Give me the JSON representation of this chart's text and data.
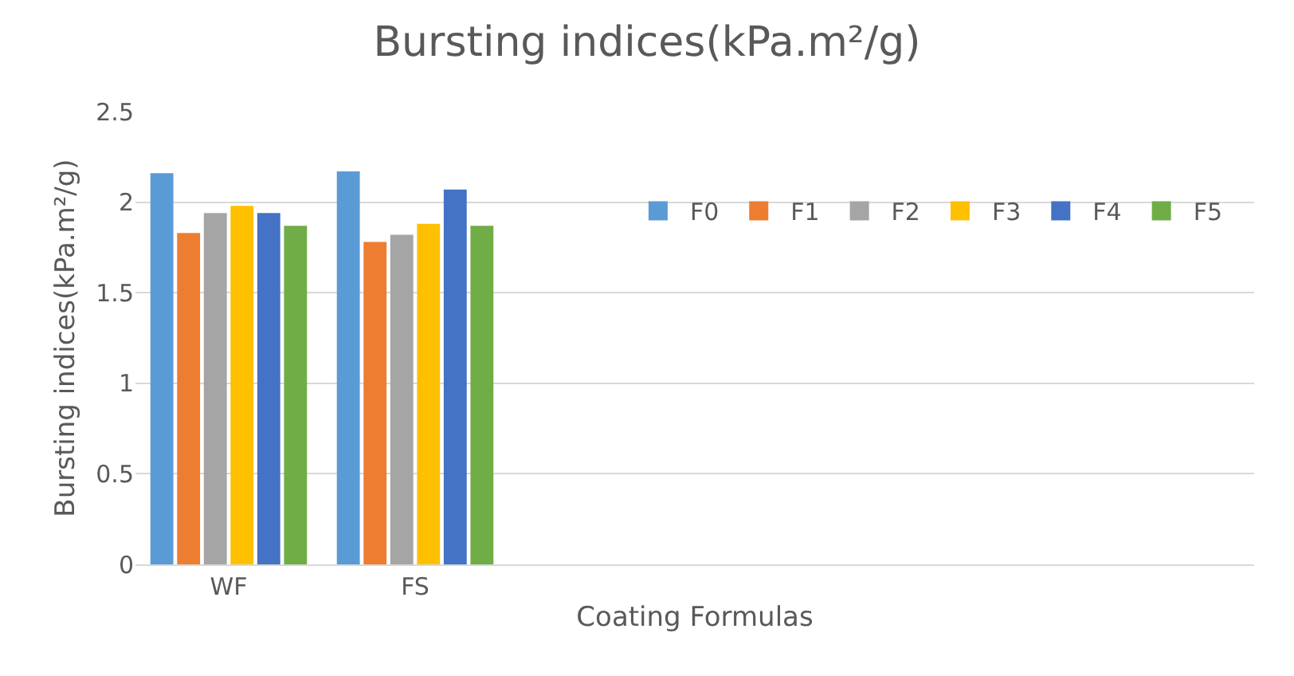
{
  "chart_data": {
    "type": "bar",
    "title": "Bursting indices(kPa.m²/g)",
    "xlabel": "Coating Formulas",
    "ylabel": "Bursting indices(kPa.m²/g)",
    "categories": [
      "WF",
      "FS",
      null,
      null,
      null,
      null
    ],
    "series": [
      {
        "name": "F0",
        "color": "#5b9bd5",
        "values": [
          2.16,
          2.17,
          null,
          null,
          null,
          null
        ]
      },
      {
        "name": "F1",
        "color": "#ed7d31",
        "values": [
          1.83,
          1.78,
          null,
          null,
          null,
          null
        ]
      },
      {
        "name": "F2",
        "color": "#a5a5a5",
        "values": [
          1.94,
          1.82,
          null,
          null,
          null,
          null
        ]
      },
      {
        "name": "F3",
        "color": "#ffc000",
        "values": [
          1.98,
          1.88,
          null,
          null,
          null,
          null
        ]
      },
      {
        "name": "F4",
        "color": "#4472c4",
        "values": [
          1.94,
          2.07,
          null,
          null,
          null,
          null
        ]
      },
      {
        "name": "F5",
        "color": "#70ad47",
        "values": [
          1.87,
          1.87,
          null,
          null,
          null,
          null
        ]
      }
    ],
    "ylim": [
      0,
      2.5
    ],
    "yticks": [
      0,
      0.5,
      1,
      1.5,
      2,
      2.5
    ],
    "grid": "y",
    "legend": "right"
  }
}
